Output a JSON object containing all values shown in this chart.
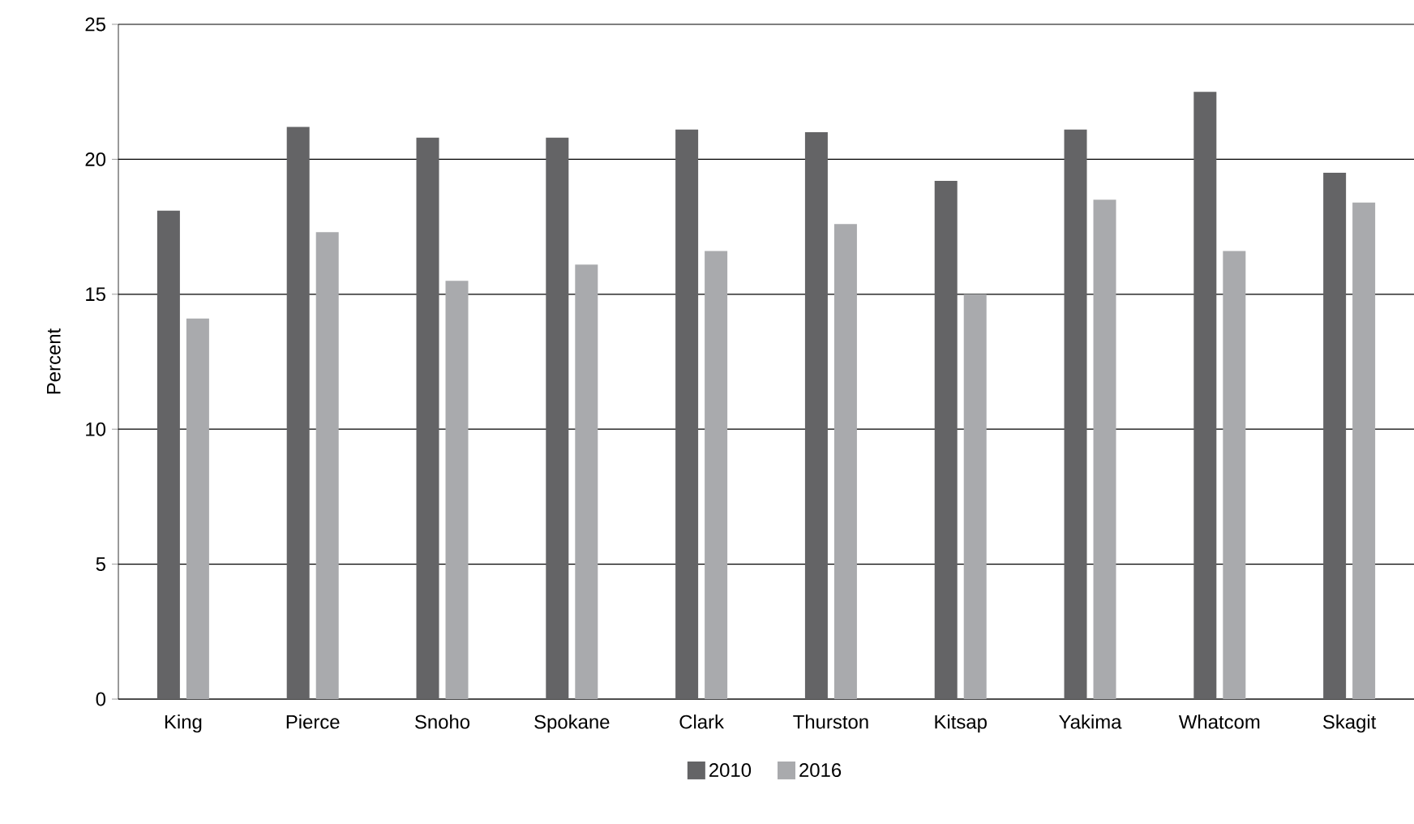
{
  "chart_data": {
    "type": "bar",
    "ylabel": "Percent",
    "categories": [
      "King",
      "Pierce",
      "Snoho",
      "Spokane",
      "Clark",
      "Thurston",
      "Kitsap",
      "Yakima",
      "Whatcom",
      "Skagit"
    ],
    "series": [
      {
        "name": "2010",
        "color": "#646466",
        "values": [
          18.1,
          21.2,
          20.8,
          20.8,
          21.1,
          21.0,
          19.2,
          21.1,
          22.5,
          19.5
        ]
      },
      {
        "name": "2016",
        "color": "#a9aaad",
        "values": [
          14.1,
          17.3,
          15.5,
          16.1,
          16.6,
          17.6,
          15.0,
          18.5,
          16.6,
          18.4
        ]
      }
    ],
    "ylim": [
      0,
      25
    ],
    "yticks": [
      0,
      5,
      10,
      15,
      20,
      25
    ],
    "grid": "y",
    "legend": "bottom"
  }
}
